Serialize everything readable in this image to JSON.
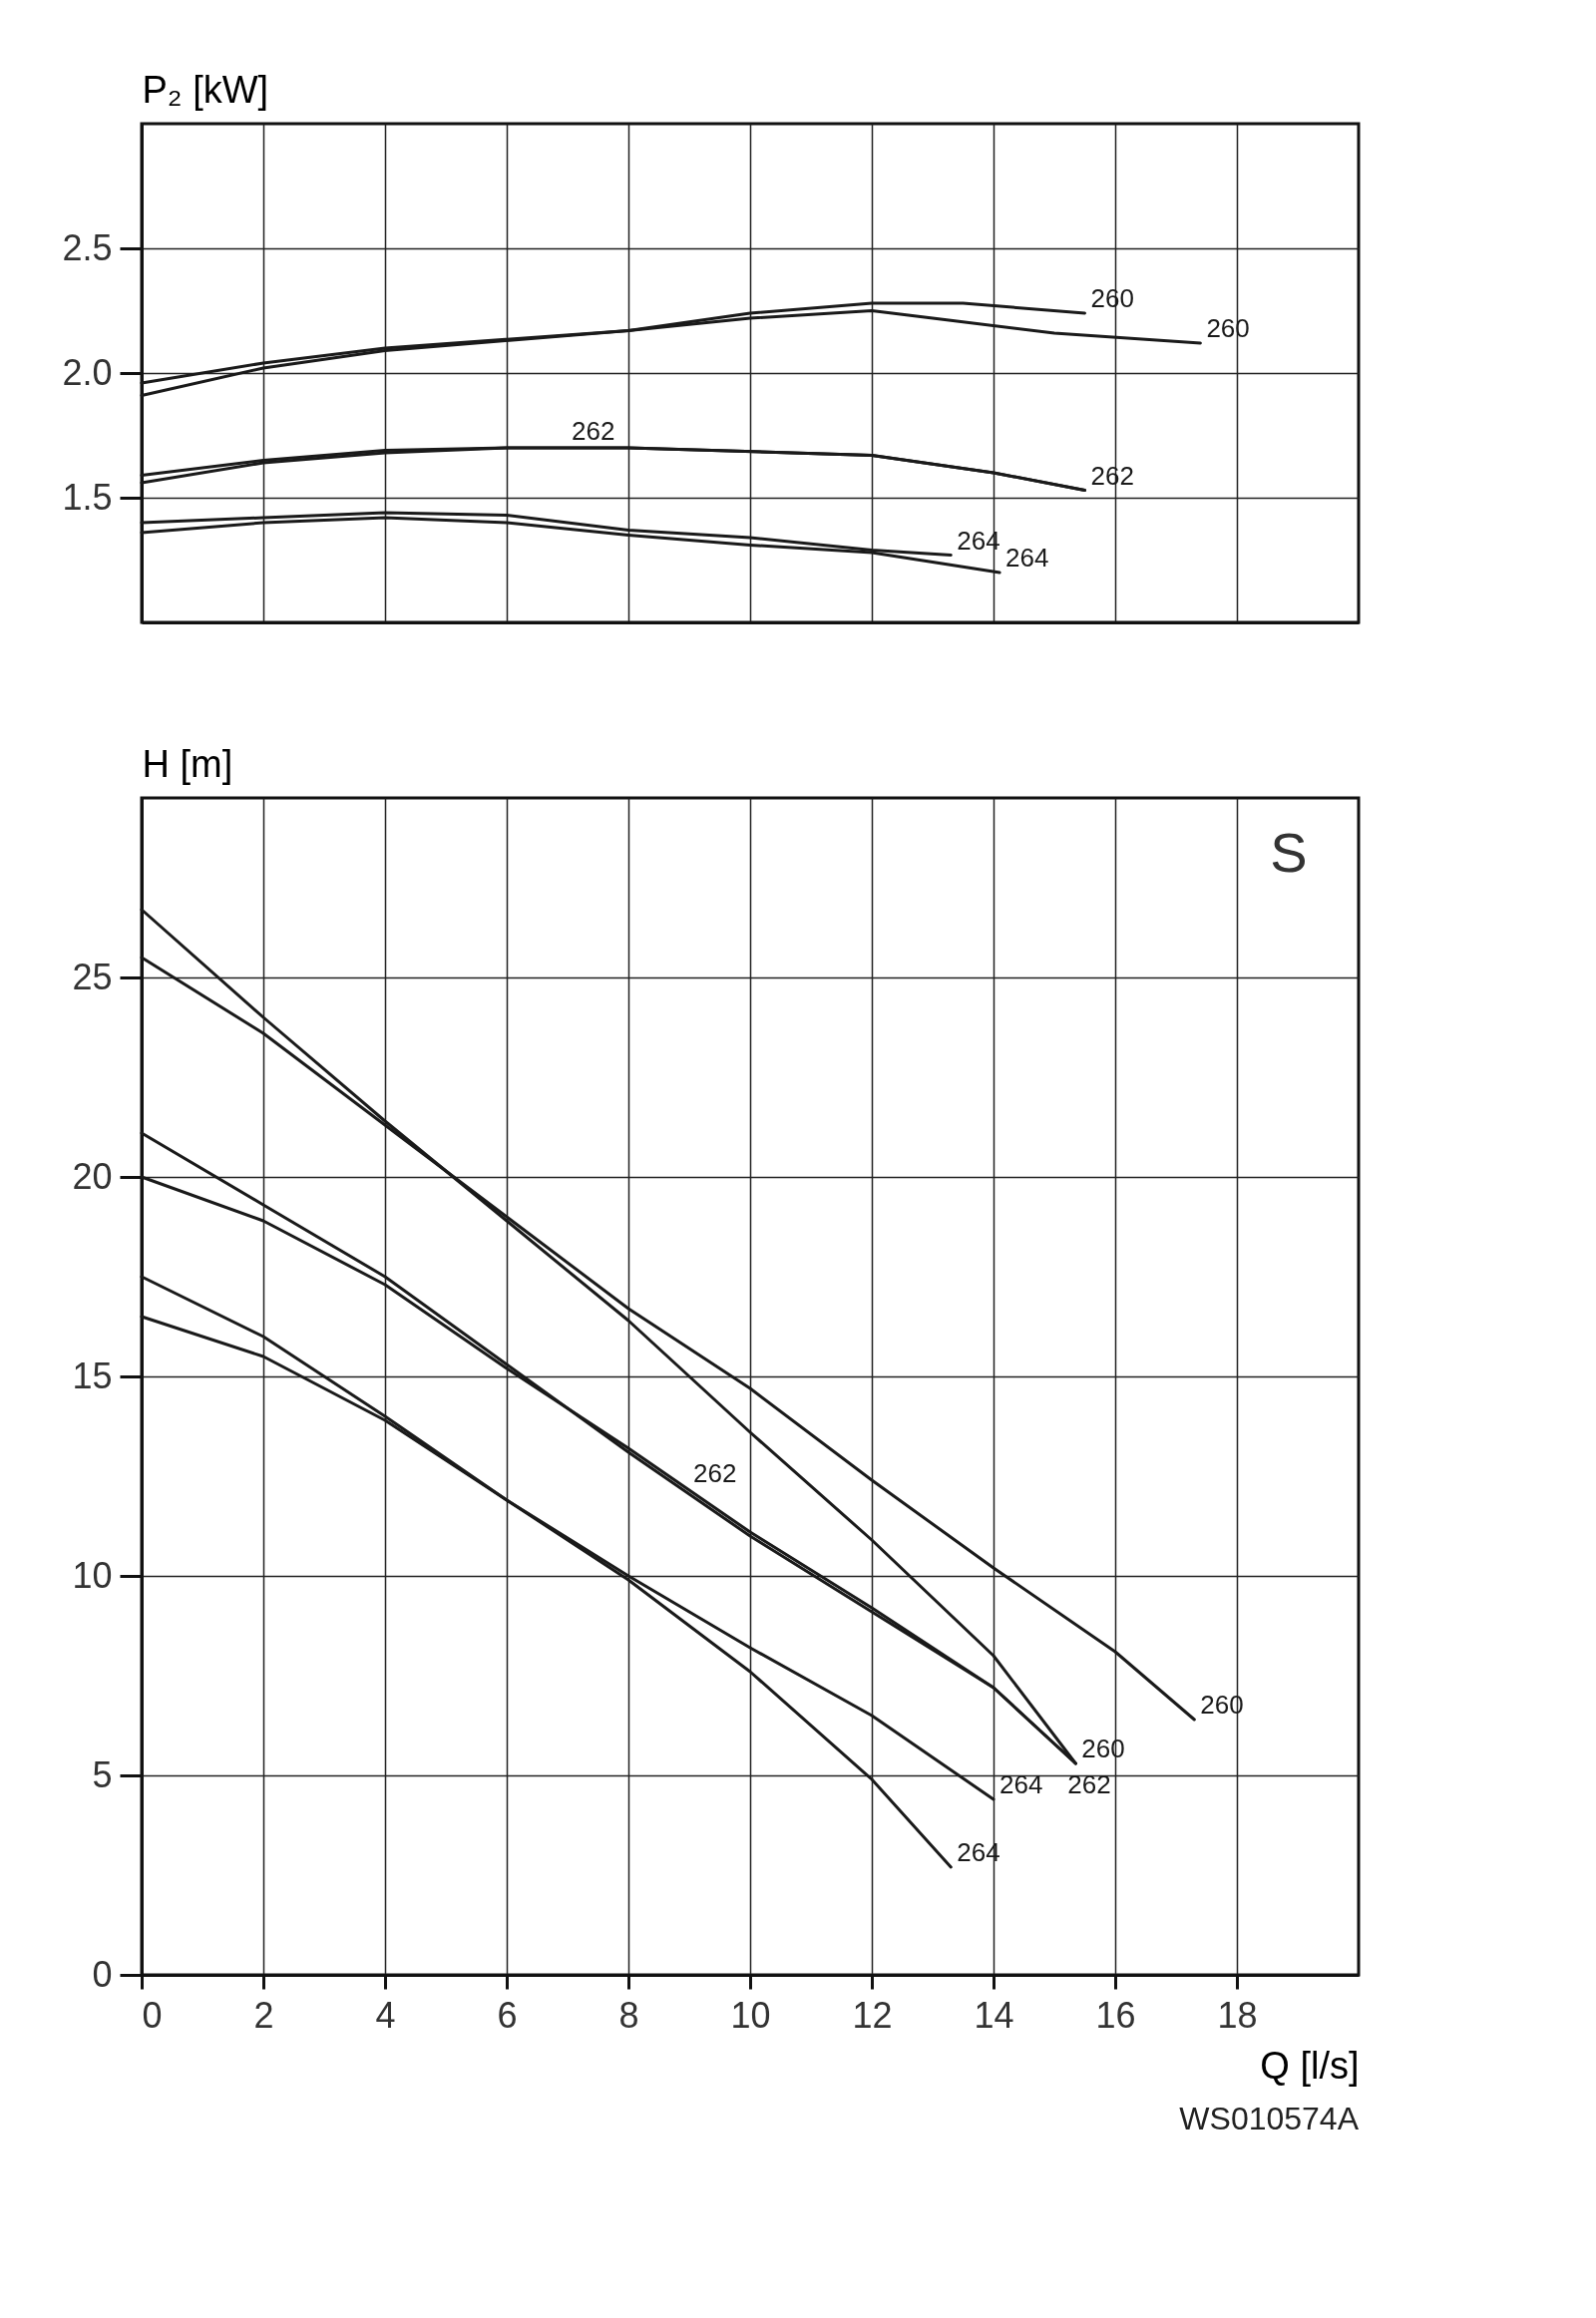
{
  "chart_data": [
    {
      "type": "line",
      "ylabel": "P₂ [kW]",
      "xlim": [
        0,
        20
      ],
      "xticks": [
        0,
        2,
        4,
        6,
        8,
        10,
        12,
        14,
        16,
        18
      ],
      "ylim": [
        1.0,
        3.0
      ],
      "yticks": [
        1.5,
        {
          "value": 2,
          "label": "2.0"
        },
        2.5
      ],
      "grid": true,
      "tick_labels": "y",
      "series": [
        {
          "name": "260",
          "color": "#1a1a1a",
          "x": [
            0,
            2,
            4,
            8,
            10,
            12,
            13.5,
            15.5
          ],
          "values": [
            1.96,
            2.04,
            2.1,
            2.17,
            2.24,
            2.28,
            2.28,
            2.24
          ]
        },
        {
          "name": "260",
          "color": "#1a1a1a",
          "x": [
            0,
            2,
            4,
            8,
            10,
            12,
            13,
            15,
            17.4
          ],
          "values": [
            1.91,
            2.02,
            2.09,
            2.17,
            2.22,
            2.25,
            2.22,
            2.16,
            2.12
          ]
        },
        {
          "name": "262",
          "color": "#1a1a1a",
          "x": [
            0,
            2,
            4,
            6,
            8,
            12,
            14,
            15.5
          ],
          "values": [
            1.59,
            1.65,
            1.69,
            1.7,
            1.7,
            1.67,
            1.6,
            1.53
          ]
        },
        {
          "name": "262",
          "color": "#1a1a1a",
          "x": [
            0,
            2,
            4,
            6,
            8,
            12,
            14,
            15.5
          ],
          "values": [
            1.56,
            1.64,
            1.68,
            1.7,
            1.7,
            1.67,
            1.6,
            1.53
          ]
        },
        {
          "name": "264",
          "color": "#1a1a1a",
          "x": [
            0,
            2,
            4,
            6,
            8,
            10,
            12,
            13.3
          ],
          "values": [
            1.4,
            1.42,
            1.44,
            1.43,
            1.37,
            1.34,
            1.29,
            1.27
          ]
        },
        {
          "name": "264",
          "color": "#1a1a1a",
          "x": [
            0,
            2,
            4,
            6,
            8,
            10,
            12,
            14.1
          ],
          "values": [
            1.36,
            1.4,
            1.42,
            1.4,
            1.35,
            1.31,
            1.28,
            1.2
          ]
        }
      ]
    },
    {
      "type": "line",
      "ylabel": "H [m]",
      "xlabel": "Q [l/s]",
      "xlim": [
        0,
        20
      ],
      "xticks": [
        0,
        2,
        4,
        6,
        8,
        10,
        12,
        14,
        16,
        18
      ],
      "ylim": [
        0,
        29.5
      ],
      "yticks": [
        0,
        5,
        10,
        15,
        20,
        25
      ],
      "grid": true,
      "series": [
        {
          "name": "260",
          "color": "#1a1a1a",
          "x": [
            0,
            2,
            4,
            6,
            8,
            10,
            12,
            14,
            15.35
          ],
          "values": [
            26.7,
            24.0,
            21.4,
            18.9,
            16.4,
            13.6,
            10.9,
            8.0,
            5.3
          ]
        },
        {
          "name": "260",
          "color": "#1a1a1a",
          "x": [
            0,
            2,
            4,
            6,
            8,
            10,
            12,
            14,
            16,
            17.3
          ],
          "values": [
            25.5,
            23.6,
            21.3,
            19.0,
            16.7,
            14.7,
            12.4,
            10.2,
            8.1,
            6.4
          ]
        },
        {
          "name": "262",
          "color": "#1a1a1a",
          "x": [
            0,
            2,
            4,
            6,
            8,
            10,
            12,
            14,
            15.35
          ],
          "values": [
            21.1,
            19.3,
            17.5,
            15.3,
            13.1,
            11.0,
            9.1,
            7.2,
            5.3
          ]
        },
        {
          "name": "262",
          "color": "#1a1a1a",
          "x": [
            0,
            2,
            4,
            6,
            8,
            10,
            12,
            14,
            15.35
          ],
          "values": [
            20.0,
            18.9,
            17.3,
            15.2,
            13.2,
            11.1,
            9.2,
            7.2,
            5.3
          ]
        },
        {
          "name": "264",
          "color": "#1a1a1a",
          "x": [
            0,
            2,
            4,
            6,
            8,
            10,
            12,
            13.3
          ],
          "values": [
            17.5,
            16.0,
            14.0,
            11.9,
            9.9,
            7.6,
            4.9,
            2.7
          ]
        },
        {
          "name": "264",
          "color": "#1a1a1a",
          "x": [
            0,
            2,
            4,
            6,
            8,
            10,
            12,
            14.0
          ],
          "values": [
            16.5,
            15.5,
            13.9,
            11.9,
            10.0,
            8.2,
            6.5,
            4.4
          ]
        }
      ],
      "annotations": [
        "S",
        "WS010574A"
      ]
    }
  ]
}
